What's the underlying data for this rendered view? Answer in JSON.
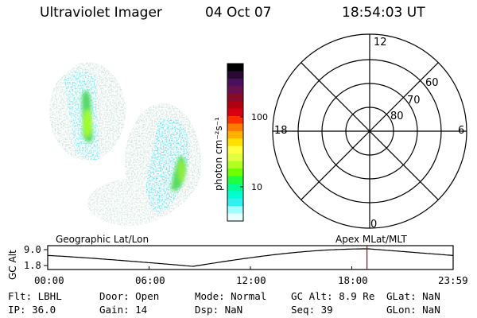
{
  "header": {
    "title": "Ultraviolet Imager",
    "date": "04 Oct 07",
    "time": "18:54:03 UT"
  },
  "colorbar": {
    "unit_label": "photon cm⁻²s⁻¹",
    "ticks": [
      "100",
      "10"
    ],
    "colors": [
      "#000000",
      "#2a0a35",
      "#4a1060",
      "#6a1050",
      "#8a0a2a",
      "#b00010",
      "#d80010",
      "#ff3000",
      "#ff7a00",
      "#ffb000",
      "#ffe000",
      "#ffff40",
      "#e0ff40",
      "#b0ff20",
      "#70ff00",
      "#20ff40",
      "#00ff90",
      "#00ffd0",
      "#30f0f0",
      "#a0ffff",
      "#e8ffff"
    ]
  },
  "polar": {
    "labels": {
      "top": "12",
      "right": "6",
      "bottom": "0",
      "left": "18"
    },
    "ring_labels": [
      "60",
      "70",
      "80"
    ]
  },
  "strip": {
    "ylabel": "GC Alt",
    "yticks": [
      "9.0",
      "1.8"
    ],
    "left_title": "Geographic Lat/Lon",
    "right_title": "Apex MLat/MLT",
    "xticks": [
      "00:00",
      "06:00",
      "12:00",
      "18:00",
      "23:59"
    ],
    "marker_time": "18:54"
  },
  "footer": {
    "flt": "Flt: LBHL",
    "ip": "IP: 36.0",
    "door": "Door: Open",
    "gain": "Gain: 14",
    "mode": "Mode: Normal",
    "dsp": "Dsp:      NaN",
    "gcalt": "GC Alt: 8.9 Re",
    "seq": "Seq: 39",
    "glat": "GLat:      NaN",
    "glon": "GLon:      NaN"
  }
}
